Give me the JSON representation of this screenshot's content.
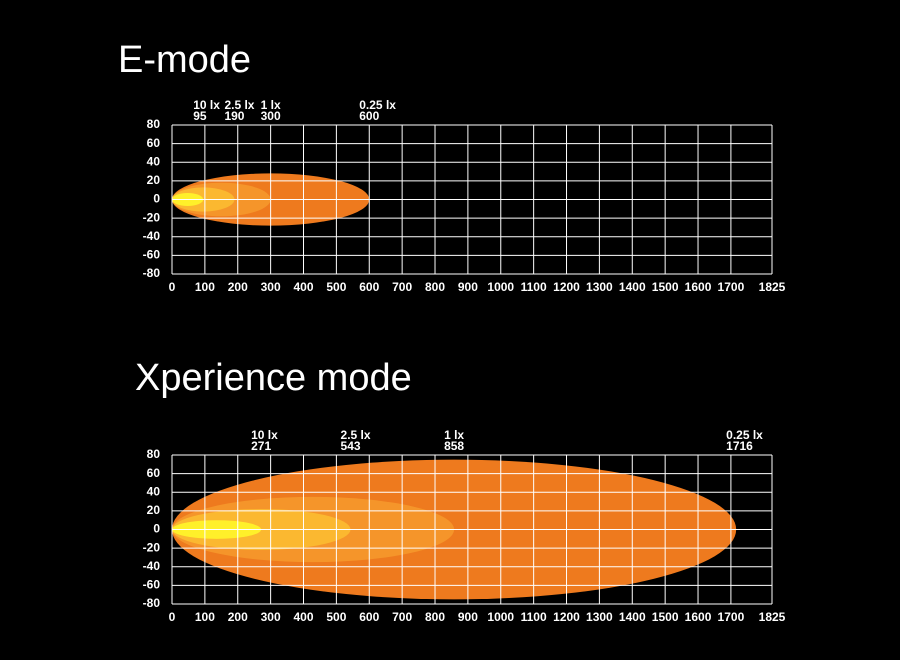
{
  "chart_data": [
    {
      "type": "isolux",
      "title": "E-mode",
      "series": [
        {
          "name": "10 lx",
          "color": "#fff02a",
          "reach": 95,
          "half_width": 7
        },
        {
          "name": "2.5 lx",
          "color": "#fbb830",
          "reach": 190,
          "half_width": 13
        },
        {
          "name": "1 lx",
          "color": "#f5952a",
          "reach": 300,
          "half_width": 18
        },
        {
          "name": "0.25 lx",
          "color": "#ee7a1e",
          "reach": 600,
          "half_width": 28
        }
      ],
      "xlim": [
        0,
        1825
      ],
      "xticks": [
        0,
        100,
        200,
        300,
        400,
        500,
        600,
        700,
        800,
        900,
        1000,
        1100,
        1200,
        1300,
        1400,
        1500,
        1600,
        1700,
        1825
      ],
      "ylim": [
        -80,
        80
      ],
      "yticks": [
        80,
        60,
        40,
        20,
        0,
        -20,
        -40,
        -60,
        -80
      ],
      "grid": true
    },
    {
      "type": "isolux",
      "title": "Xperience mode",
      "series": [
        {
          "name": "10 lx",
          "color": "#fff02a",
          "reach": 271,
          "half_width": 10
        },
        {
          "name": "2.5 lx",
          "color": "#fbb830",
          "reach": 543,
          "half_width": 22
        },
        {
          "name": "1 lx",
          "color": "#f5952a",
          "reach": 858,
          "half_width": 35
        },
        {
          "name": "0.25 lx",
          "color": "#ee7a1e",
          "reach": 1716,
          "half_width": 75
        }
      ],
      "xlim": [
        0,
        1825
      ],
      "xticks": [
        0,
        100,
        200,
        300,
        400,
        500,
        600,
        700,
        800,
        900,
        1000,
        1100,
        1200,
        1300,
        1400,
        1500,
        1600,
        1700,
        1825
      ],
      "ylim": [
        -80,
        80
      ],
      "yticks": [
        80,
        60,
        40,
        20,
        0,
        -20,
        -40,
        -60,
        -80
      ],
      "grid": true
    }
  ]
}
